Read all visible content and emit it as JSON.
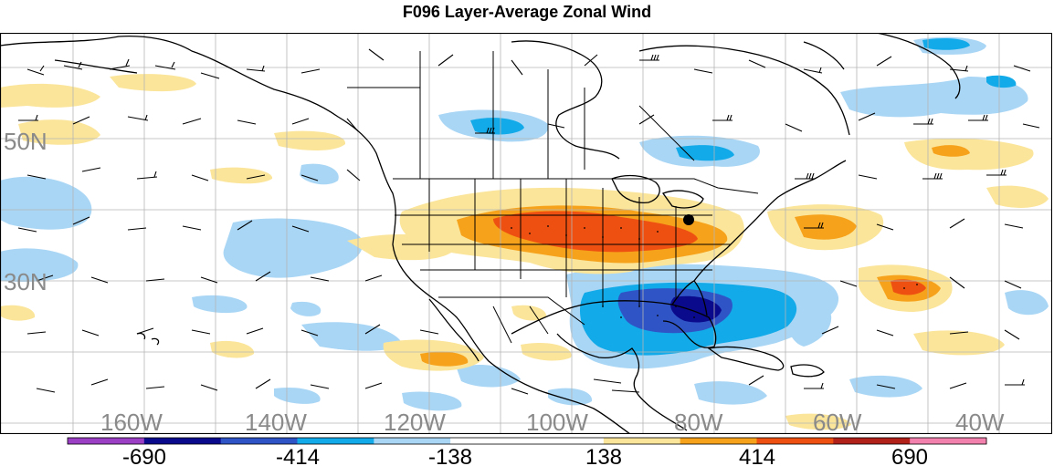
{
  "title": "F096 Layer-Average Zonal Wind",
  "map": {
    "latitude_labels": [
      "50N",
      "30N"
    ],
    "longitude_labels": [
      "160W",
      "140W",
      "120W",
      "100W",
      "80W",
      "60W",
      "40W"
    ],
    "label_color": "#8a8a8a",
    "land_line_color": "#000000",
    "grid_color": "#b5b5b5"
  },
  "colorbar": {
    "colors": [
      "#9b3fc4",
      "#0a0a8c",
      "#2f54c6",
      "#12aae8",
      "#a9d6f5",
      "#ffffff",
      "#ffffff",
      "#fbe59a",
      "#f7a21b",
      "#ee5011",
      "#b2201a",
      "#f281ad"
    ],
    "tick_labels": [
      "-690",
      "-414",
      "-138",
      "138",
      "414",
      "690"
    ]
  }
}
